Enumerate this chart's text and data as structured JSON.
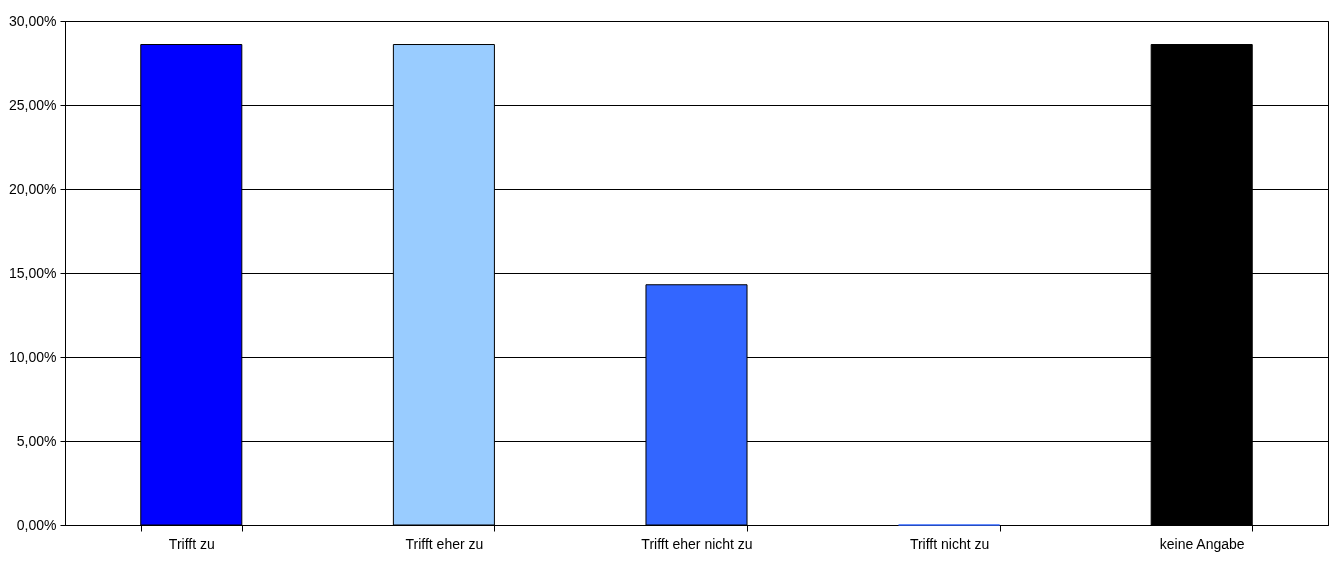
{
  "chart_data": {
    "type": "bar",
    "categories": [
      "Trifft zu",
      "Trifft eher zu",
      "Trifft eher nicht zu",
      "Trifft nicht zu",
      "keine Angabe"
    ],
    "values": [
      28.6,
      28.6,
      14.3,
      0,
      28.6
    ],
    "colors": [
      "#0000ff",
      "#99ccff",
      "#3366ff",
      "#3366ff",
      "#000000"
    ],
    "ylim": [
      0,
      30
    ],
    "yticks": [
      {
        "value": 0,
        "label": "0,00%"
      },
      {
        "value": 5,
        "label": "5,00%"
      },
      {
        "value": 10,
        "label": "10,00%"
      },
      {
        "value": 15,
        "label": "15,00%"
      },
      {
        "value": 20,
        "label": "20,00%"
      },
      {
        "value": 25,
        "label": "25,00%"
      },
      {
        "value": 30,
        "label": "30,00%"
      }
    ],
    "grid": "y"
  }
}
